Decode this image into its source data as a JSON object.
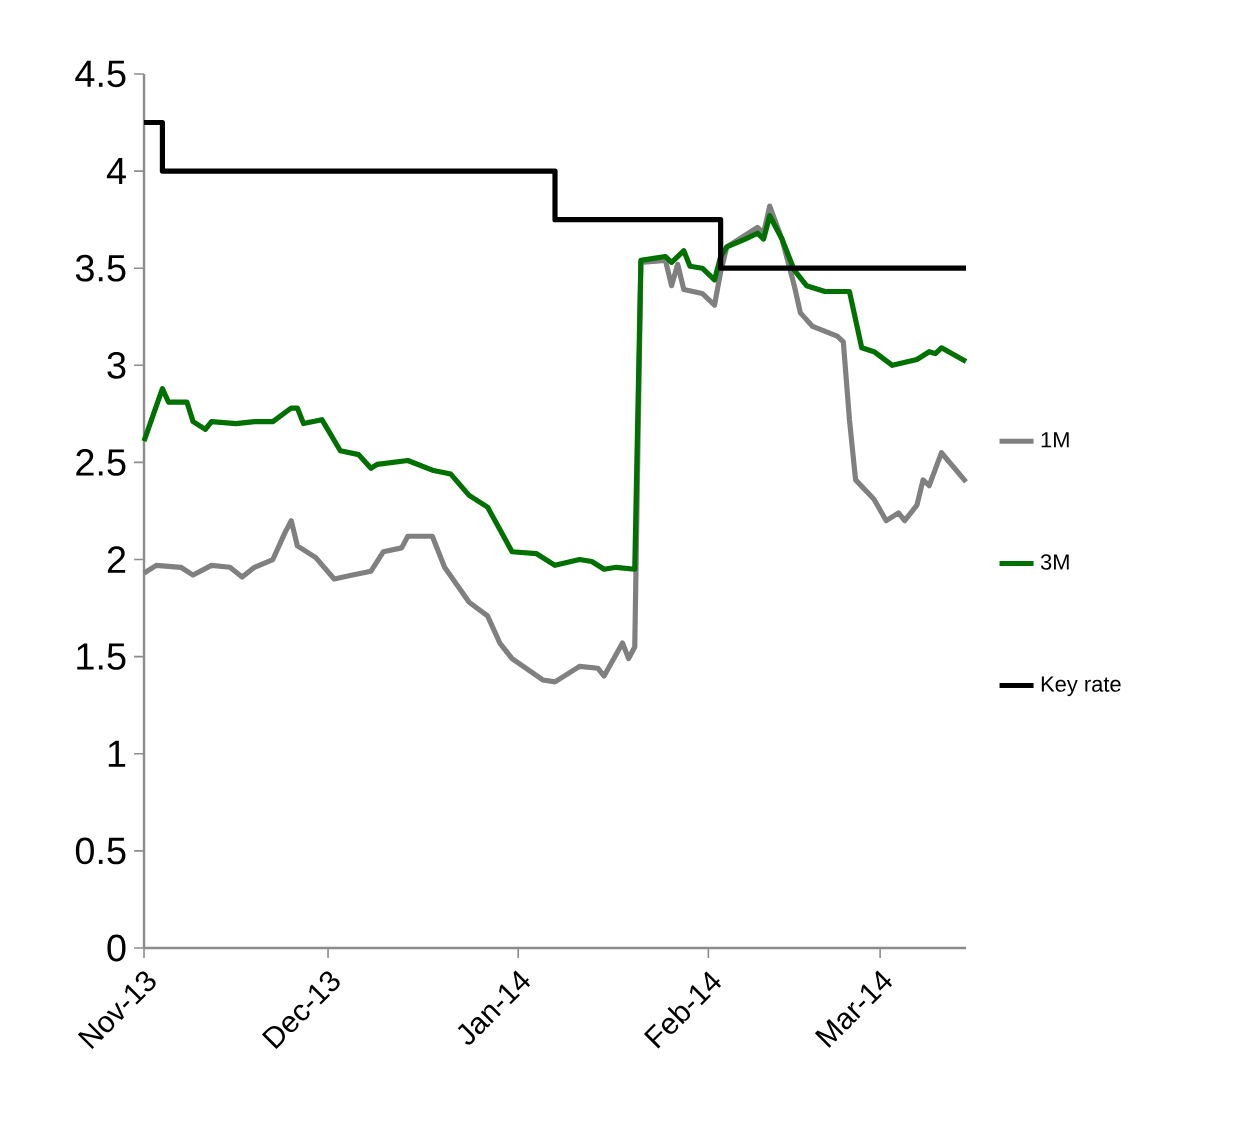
{
  "chart_data": {
    "type": "line",
    "xlim": [
      "2013-11-01",
      "2014-03-15"
    ],
    "xticks": [
      {
        "value": "2013-11-01",
        "label": "Nov-13"
      },
      {
        "value": "2013-12-01",
        "label": "Dec-13"
      },
      {
        "value": "2014-01-01",
        "label": "Jan-14"
      },
      {
        "value": "2014-02-01",
        "label": "Feb-14"
      },
      {
        "value": "2014-03-01",
        "label": "Mar-14"
      }
    ],
    "ylim": [
      0,
      4.5
    ],
    "yticks": [
      0,
      0.5,
      1,
      1.5,
      2,
      2.5,
      3,
      3.5,
      4,
      4.5
    ],
    "legend": "right",
    "series": [
      {
        "name": "1M",
        "color": "#808080",
        "x": [
          "2013-11-01",
          "2013-11-03",
          "2013-11-07",
          "2013-11-09",
          "2013-11-12",
          "2013-11-15",
          "2013-11-17",
          "2013-11-19",
          "2013-11-22",
          "2013-11-24",
          "2013-11-25",
          "2013-11-26",
          "2013-11-29",
          "2013-12-02",
          "2013-12-05",
          "2013-12-08",
          "2013-12-10",
          "2013-12-13",
          "2013-12-14",
          "2013-12-18",
          "2013-12-20",
          "2013-12-24",
          "2013-12-27",
          "2013-12-29",
          "2013-12-31",
          "2014-01-05",
          "2014-01-07",
          "2014-01-11",
          "2014-01-14",
          "2014-01-15",
          "2014-01-18",
          "2014-01-19",
          "2014-01-20",
          "2014-01-21",
          "2014-01-25",
          "2014-01-26",
          "2014-01-27",
          "2014-01-28",
          "2014-01-31",
          "2014-02-02",
          "2014-02-03",
          "2014-02-04",
          "2014-02-09",
          "2014-02-10",
          "2014-02-11",
          "2014-02-13",
          "2014-02-15",
          "2014-02-16",
          "2014-02-18",
          "2014-02-22",
          "2014-02-23",
          "2014-02-24",
          "2014-02-25",
          "2014-02-28",
          "2014-03-02",
          "2014-03-04",
          "2014-03-05",
          "2014-03-07",
          "2014-03-08",
          "2014-03-09",
          "2014-03-11",
          "2014-03-15"
        ],
        "values": [
          1.93,
          1.97,
          1.96,
          1.92,
          1.97,
          1.96,
          1.91,
          1.96,
          2.0,
          2.14,
          2.2,
          2.07,
          2.01,
          1.9,
          1.92,
          1.94,
          2.04,
          2.06,
          2.12,
          2.12,
          1.96,
          1.78,
          1.71,
          1.57,
          1.49,
          1.38,
          1.37,
          1.45,
          1.44,
          1.4,
          1.57,
          1.49,
          1.55,
          3.53,
          3.54,
          3.41,
          3.52,
          3.39,
          3.37,
          3.31,
          3.48,
          3.61,
          3.71,
          3.68,
          3.82,
          3.65,
          3.41,
          3.27,
          3.2,
          3.15,
          3.12,
          2.72,
          2.41,
          2.31,
          2.2,
          2.24,
          2.2,
          2.28,
          2.41,
          2.38,
          2.55,
          2.4
        ]
      },
      {
        "name": "3M",
        "color": "#007000",
        "x": [
          "2013-11-01",
          "2013-11-02",
          "2013-11-04",
          "2013-11-05",
          "2013-11-08",
          "2013-11-09",
          "2013-11-11",
          "2013-11-12",
          "2013-11-16",
          "2013-11-19",
          "2013-11-22",
          "2013-11-25",
          "2013-11-26",
          "2013-11-27",
          "2013-11-30",
          "2013-12-03",
          "2013-12-06",
          "2013-12-08",
          "2013-12-09",
          "2013-12-14",
          "2013-12-18",
          "2013-12-21",
          "2013-12-24",
          "2013-12-27",
          "2013-12-31",
          "2014-01-04",
          "2014-01-07",
          "2014-01-11",
          "2014-01-13",
          "2014-01-15",
          "2014-01-17",
          "2014-01-20",
          "2014-01-21",
          "2014-01-25",
          "2014-01-26",
          "2014-01-28",
          "2014-01-29",
          "2014-01-31",
          "2014-02-02",
          "2014-02-03",
          "2014-02-04",
          "2014-02-07",
          "2014-02-09",
          "2014-02-10",
          "2014-02-11",
          "2014-02-13",
          "2014-02-15",
          "2014-02-17",
          "2014-02-20",
          "2014-02-24",
          "2014-02-26",
          "2014-02-28",
          "2014-03-03",
          "2014-03-07",
          "2014-03-09",
          "2014-03-10",
          "2014-03-11",
          "2014-03-15"
        ],
        "values": [
          2.61,
          2.7,
          2.88,
          2.81,
          2.81,
          2.71,
          2.67,
          2.71,
          2.7,
          2.71,
          2.71,
          2.78,
          2.78,
          2.7,
          2.72,
          2.56,
          2.54,
          2.47,
          2.49,
          2.51,
          2.46,
          2.44,
          2.33,
          2.27,
          2.04,
          2.03,
          1.97,
          2.0,
          1.99,
          1.95,
          1.96,
          1.95,
          3.54,
          3.56,
          3.53,
          3.59,
          3.51,
          3.5,
          3.44,
          3.56,
          3.61,
          3.65,
          3.68,
          3.65,
          3.77,
          3.65,
          3.49,
          3.41,
          3.38,
          3.38,
          3.09,
          3.07,
          3.0,
          3.03,
          3.07,
          3.06,
          3.09,
          3.02
        ]
      },
      {
        "name": "Key rate",
        "color": "#000000",
        "type": "step",
        "x": [
          "2013-11-01",
          "2013-11-04",
          "2014-01-07",
          "2014-02-03",
          "2014-03-15"
        ],
        "values": [
          4.25,
          4.0,
          3.75,
          3.5,
          3.5
        ]
      }
    ]
  }
}
